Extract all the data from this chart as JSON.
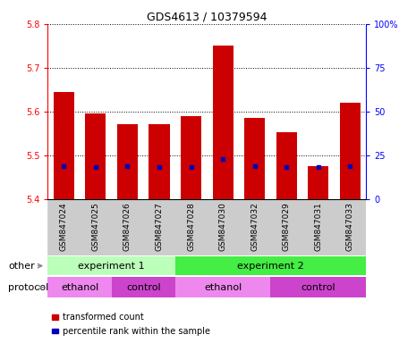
{
  "title": "GDS4613 / 10379594",
  "samples": [
    "GSM847024",
    "GSM847025",
    "GSM847026",
    "GSM847027",
    "GSM847028",
    "GSM847030",
    "GSM847032",
    "GSM847029",
    "GSM847031",
    "GSM847033"
  ],
  "bar_bottoms": [
    5.4,
    5.4,
    5.4,
    5.4,
    5.4,
    5.4,
    5.4,
    5.4,
    5.4,
    5.4
  ],
  "bar_tops": [
    5.645,
    5.595,
    5.572,
    5.57,
    5.59,
    5.75,
    5.585,
    5.553,
    5.476,
    5.62
  ],
  "percentile_values": [
    5.475,
    5.473,
    5.474,
    5.473,
    5.473,
    5.491,
    5.474,
    5.473,
    5.472,
    5.476
  ],
  "ylim_left": [
    5.4,
    5.8
  ],
  "ylim_right": [
    0,
    100
  ],
  "yticks_left": [
    5.4,
    5.5,
    5.6,
    5.7,
    5.8
  ],
  "yticks_right": [
    0,
    25,
    50,
    75,
    100
  ],
  "ytick_labels_right": [
    "0",
    "25",
    "50",
    "75",
    "100%"
  ],
  "bar_color": "#cc0000",
  "percentile_color": "#0000bb",
  "background_color": "#ffffff",
  "experiment1_color": "#bbffbb",
  "experiment2_color": "#44ee44",
  "ethanol_color": "#ee88ee",
  "control_color": "#cc44cc",
  "sample_bg_color": "#cccccc",
  "other_label": "other",
  "protocol_label": "protocol",
  "experiment_labels": [
    "experiment 1",
    "experiment 2"
  ],
  "protocol_labels": [
    "ethanol",
    "control",
    "ethanol",
    "control"
  ],
  "experiment1_span": [
    0,
    4
  ],
  "experiment2_span": [
    4,
    10
  ],
  "ethanol1_span": [
    0,
    2
  ],
  "control1_span": [
    2,
    4
  ],
  "ethanol2_span": [
    4,
    7
  ],
  "control2_span": [
    7,
    10
  ],
  "legend_items": [
    "transformed count",
    "percentile rank within the sample"
  ]
}
